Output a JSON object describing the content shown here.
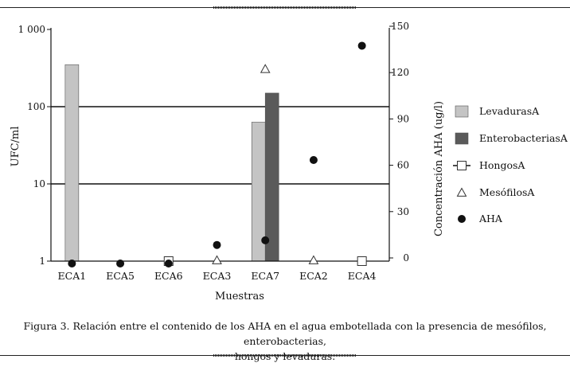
{
  "chart_data": {
    "type": "bar",
    "categories": [
      "ECA1",
      "ECA5",
      "ECA6",
      "ECA3",
      "ECA7",
      "ECA2",
      "ECA4"
    ],
    "xlabel": "Muestras",
    "ylabel": "UFC/ml",
    "y2label": "Concentración AHA (ug/l)",
    "y_scale": "log",
    "ylim": [
      1,
      1000
    ],
    "y2lim": [
      0,
      150
    ],
    "yticks": [
      "1",
      "10",
      "100",
      "1 000"
    ],
    "y2ticks": [
      "0",
      "30",
      "60",
      "90",
      "120",
      "150"
    ],
    "gridlines_y": [
      10,
      100
    ],
    "series": [
      {
        "name": "LevadurasA",
        "kind": "bar",
        "axis": "left",
        "color": "#c4c4c4",
        "values": [
          350,
          null,
          null,
          null,
          63,
          null,
          null
        ]
      },
      {
        "name": "EnterobacteriasA",
        "kind": "bar",
        "axis": "left",
        "color": "#5a5a5a",
        "values": [
          null,
          null,
          null,
          null,
          150,
          null,
          null
        ]
      },
      {
        "name": "HongosA",
        "kind": "square",
        "axis": "left",
        "values": [
          null,
          null,
          1,
          null,
          null,
          null,
          1
        ]
      },
      {
        "name": "MesófilosA",
        "kind": "triangle",
        "axis": "left",
        "values": [
          null,
          null,
          null,
          1,
          300,
          1,
          null
        ]
      },
      {
        "name": "AHA",
        "kind": "dot",
        "axis": "right",
        "values": [
          0,
          0,
          0,
          12,
          15,
          67,
          141
        ]
      }
    ]
  },
  "caption": {
    "line1": "Figura 3. Relación entre el contenido de los AHA en el agua embotellada con la presencia de mesófilos, enterobacterias,",
    "line2": "hongos y levaduras."
  }
}
